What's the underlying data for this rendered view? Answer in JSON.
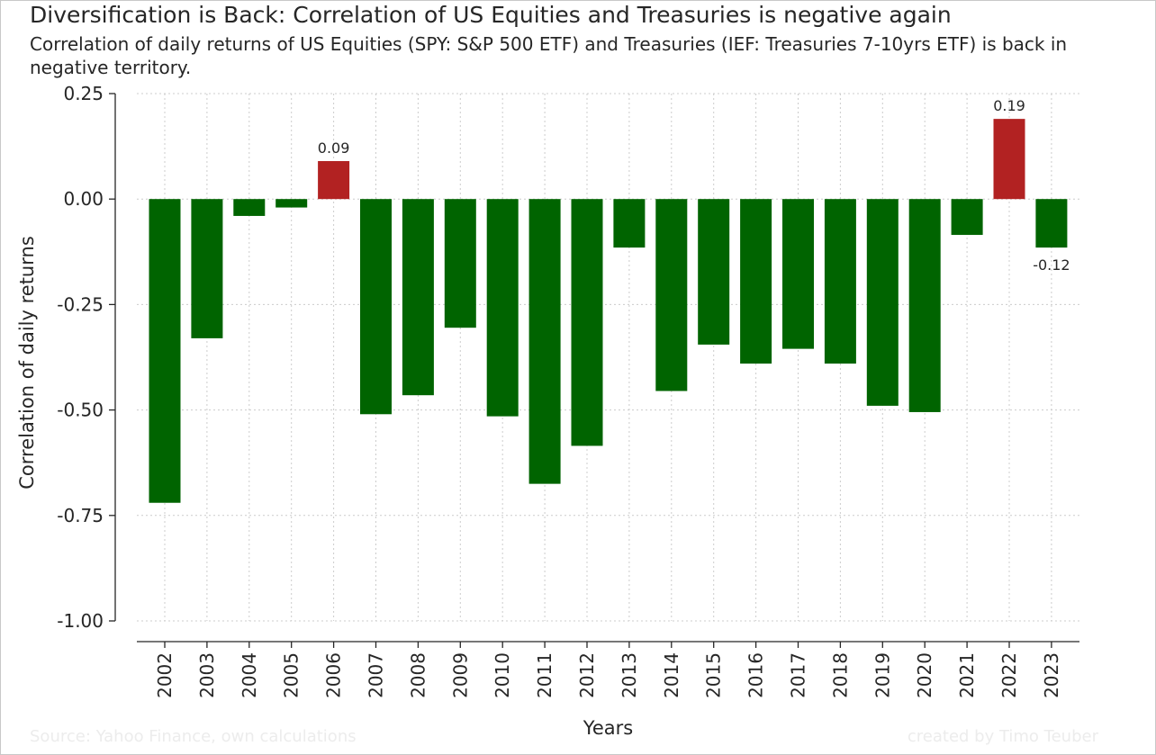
{
  "title": "Diversification is Back: Correlation of US Equities and Treasuries is negative again",
  "subtitle": "Correlation of daily returns of US Equities (SPY: S&P 500 ETF) and Treasuries (IEF: Treasuries 7-10yrs ETF) is back in negative territory.",
  "footer": {
    "source": "Source: Yahoo Finance, own calculations",
    "credit": "created by Timo Teuber"
  },
  "colors": {
    "negative": "#006400",
    "positive": "#b22222",
    "text": "#262626",
    "grid": "#cccccc",
    "footer": "#ececec"
  },
  "chart_data": {
    "type": "bar",
    "xlabel": "Years",
    "ylabel": "Correlation of daily returns",
    "ylim": [
      -1.0,
      0.25
    ],
    "yticks": [
      0.25,
      0.0,
      -0.25,
      -0.5,
      -0.75,
      -1.0
    ],
    "ytick_labels": [
      "0.25",
      "0.00",
      "-0.25",
      "-0.50",
      "-0.75",
      "-1.00"
    ],
    "grid": true,
    "categories": [
      "2002",
      "2003",
      "2004",
      "2005",
      "2006",
      "2007",
      "2008",
      "2009",
      "2010",
      "2011",
      "2012",
      "2013",
      "2014",
      "2015",
      "2016",
      "2017",
      "2018",
      "2019",
      "2020",
      "2021",
      "2022",
      "2023"
    ],
    "values": [
      -0.72,
      -0.33,
      -0.04,
      -0.02,
      0.09,
      -0.51,
      -0.465,
      -0.305,
      -0.515,
      -0.675,
      -0.585,
      -0.115,
      -0.455,
      -0.345,
      -0.39,
      -0.355,
      -0.39,
      -0.49,
      -0.505,
      -0.085,
      0.19,
      -0.115
    ],
    "annotations": [
      {
        "category": "2006",
        "label": "0.09"
      },
      {
        "category": "2022",
        "label": "0.19"
      },
      {
        "category": "2023",
        "label": "-0.12"
      }
    ]
  }
}
